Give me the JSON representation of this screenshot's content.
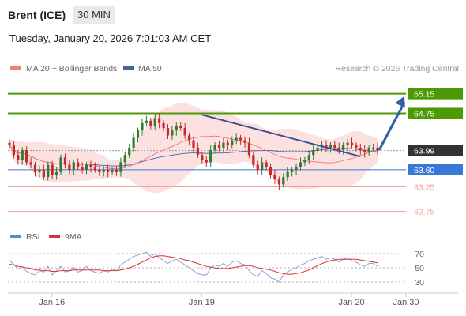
{
  "header": {
    "instrument": "Brent (ICE)",
    "timeframe": "30 MIN",
    "timestamp": "Tuesday, January 20, 2026 7:01:03 AM CET",
    "copyright": "Research © 2026 Trading Central"
  },
  "legend": {
    "ma20_bollinger": "MA 20 + Bollinger Bands",
    "ma50": "MA 50",
    "rsi": "RSI",
    "rsi_ma": "9MA"
  },
  "colors": {
    "candle_up": "#2e7d32",
    "candle_down": "#c62828",
    "bollinger_fill": "#fcdcdc",
    "ma20": "#f08080",
    "ma50": "#4a5fa8",
    "resistance": "#4e9a06",
    "support_blue": "#3a78d8",
    "support_red": "#f2a0a0",
    "current": "#333333",
    "trend_line": "#3f4f8f",
    "arrow": "#2f5fa8",
    "rsi_line": "#7d9bd4",
    "rsi_ma_line": "#e03030"
  },
  "chart_data": [
    {
      "type": "candlestick",
      "title": "Brent (ICE)",
      "timeframe": "30 MIN",
      "ylim": [
        62.55,
        65.45
      ],
      "x_ticks": [
        "Jan 16",
        "Jan 19",
        "Jan 20",
        "Jan 30"
      ],
      "price_levels": [
        {
          "label": "65.15",
          "value": 65.15,
          "kind": "resistance"
        },
        {
          "label": "64.75",
          "value": 64.75,
          "kind": "resistance"
        },
        {
          "label": "63.99",
          "value": 63.99,
          "kind": "current"
        },
        {
          "label": "63.60",
          "value": 63.6,
          "kind": "support_blue"
        },
        {
          "label": "63.25",
          "value": 63.25,
          "kind": "support_red"
        },
        {
          "label": "62.75",
          "value": 62.75,
          "kind": "support_red"
        }
      ],
      "close": [
        64.1,
        63.9,
        63.8,
        64.0,
        63.75,
        63.7,
        63.55,
        63.6,
        63.45,
        63.7,
        63.5,
        63.55,
        63.85,
        63.7,
        63.6,
        63.75,
        63.65,
        63.6,
        63.7,
        63.65,
        63.6,
        63.55,
        63.6,
        63.55,
        63.6,
        63.55,
        63.75,
        63.9,
        64.05,
        64.25,
        64.4,
        64.55,
        64.6,
        64.5,
        64.65,
        64.55,
        64.45,
        64.3,
        64.4,
        64.5,
        64.45,
        64.3,
        64.2,
        64.05,
        63.9,
        63.8,
        63.75,
        64.0,
        64.1,
        64.05,
        64.15,
        64.1,
        64.2,
        64.25,
        64.2,
        64.15,
        63.9,
        63.7,
        63.6,
        63.75,
        63.65,
        63.5,
        63.4,
        63.3,
        63.45,
        63.55,
        63.6,
        63.65,
        63.75,
        63.8,
        63.9,
        64.0,
        64.05,
        64.1,
        64.05,
        64.1,
        64.05,
        64.0,
        64.1,
        64.15,
        64.1,
        64.05,
        64.0,
        63.95,
        64.05,
        64.05,
        63.99
      ],
      "annotations": [
        {
          "type": "trend_line",
          "from_index": 45,
          "from_value": 64.72,
          "to_index": 82,
          "to_value": 63.87
        },
        {
          "type": "target_arrow",
          "from_index": 86,
          "from_value": 64.0,
          "to_value": 65.1
        }
      ]
    },
    {
      "type": "line",
      "title": "RSI",
      "ylim": [
        20,
        80
      ],
      "y_ticks": [
        70,
        50,
        30
      ],
      "series": [
        {
          "name": "RSI",
          "values": [
            60,
            55,
            48,
            52,
            45,
            42,
            40,
            46,
            44,
            52,
            40,
            46,
            52,
            44,
            46,
            50,
            44,
            46,
            52,
            46,
            44,
            42,
            46,
            44,
            48,
            46,
            54,
            58,
            62,
            66,
            68,
            70,
            72,
            66,
            70,
            64,
            60,
            56,
            60,
            62,
            58,
            54,
            50,
            46,
            42,
            40,
            40,
            50,
            54,
            52,
            56,
            52,
            58,
            60,
            56,
            54,
            46,
            40,
            38,
            46,
            42,
            36,
            34,
            30,
            40,
            44,
            48,
            50,
            54,
            56,
            60,
            62,
            64,
            66,
            62,
            64,
            62,
            58,
            62,
            64,
            60,
            58,
            54,
            52,
            56,
            56,
            52
          ]
        },
        {
          "name": "9MA",
          "values": [
            55,
            54,
            52,
            51,
            50,
            49,
            47,
            47,
            46,
            46,
            45,
            45,
            46,
            46,
            46,
            47,
            47,
            47,
            47,
            47,
            47,
            47,
            46,
            46,
            46,
            46,
            47,
            48,
            50,
            52,
            55,
            58,
            61,
            64,
            66,
            67,
            67,
            66,
            65,
            64,
            63,
            61,
            60,
            58,
            56,
            54,
            52,
            51,
            50,
            49,
            49,
            49,
            50,
            51,
            52,
            53,
            53,
            52,
            50,
            49,
            48,
            47,
            45,
            43,
            42,
            41,
            41,
            42,
            43,
            45,
            47,
            50,
            53,
            56,
            58,
            60,
            61,
            62,
            62,
            62,
            62,
            62,
            61,
            60,
            59,
            58,
            57
          ]
        }
      ]
    }
  ]
}
